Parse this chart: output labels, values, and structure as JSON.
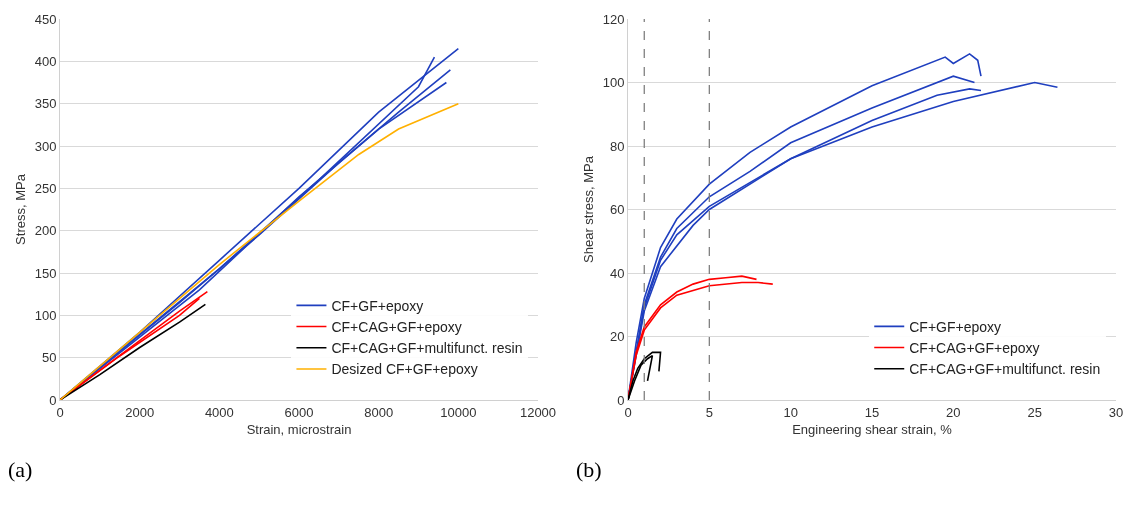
{
  "chart_data": [
    {
      "type": "line",
      "xlabel": "Strain, microstrain",
      "ylabel": "Stress, MPa",
      "xlim": [
        0,
        12000
      ],
      "xticks": [
        0,
        2000,
        4000,
        6000,
        8000,
        10000,
        12000
      ],
      "ylim": [
        0,
        450
      ],
      "yticks": [
        0,
        50,
        100,
        150,
        200,
        250,
        300,
        350,
        400,
        450
      ],
      "grid": "y",
      "legend": "bottom right",
      "annotations": [
        "(a)"
      ],
      "series": [
        {
          "name": "CF+GF+epoxy",
          "color": "#1f3fbf",
          "x": [
            0,
            2000,
            4000,
            6000,
            8000,
            10000
          ],
          "values": [
            0,
            80,
            165,
            250,
            340,
            415
          ]
        },
        {
          "color": "#1f3fbf",
          "x": [
            0,
            3000,
            5000,
            7000,
            8500,
            9800
          ],
          "values": [
            0,
            115,
            195,
            280,
            340,
            390
          ]
        },
        {
          "color": "#1f3fbf",
          "x": [
            0,
            3500,
            6000,
            8000,
            9700
          ],
          "values": [
            0,
            130,
            240,
            320,
            375
          ]
        },
        {
          "color": "#1f3fbf",
          "x": [
            0,
            4000,
            6500,
            9000,
            9400
          ],
          "values": [
            0,
            155,
            260,
            370,
            405
          ]
        },
        {
          "name": "CF+CAG+GF+epoxy",
          "color": "#ff0000",
          "x": [
            0,
            1000,
            2000,
            3000,
            3700
          ],
          "values": [
            0,
            35,
            70,
            105,
            128
          ]
        },
        {
          "color": "#ff0000",
          "x": [
            0,
            1500,
            3000,
            3500
          ],
          "values": [
            0,
            52,
            100,
            120
          ]
        },
        {
          "name": "CF+CAG+GF+multifunct. resin",
          "color": "#000000",
          "x": [
            0,
            1000,
            2000,
            3000,
            3650
          ],
          "values": [
            0,
            30,
            62,
            92,
            113
          ]
        },
        {
          "name": "Desized CF+GF+epoxy",
          "color": "#ffb000",
          "x": [
            0,
            2000,
            4000,
            6000,
            7500,
            8500,
            10000
          ],
          "values": [
            0,
            80,
            160,
            235,
            290,
            320,
            350
          ]
        }
      ]
    },
    {
      "type": "line",
      "xlabel": "Engineering shear strain, %",
      "ylabel": "Shear stress, MPa",
      "xlim": [
        0,
        30
      ],
      "xticks": [
        0,
        5,
        10,
        15,
        20,
        25,
        30
      ],
      "ylim": [
        0,
        120
      ],
      "yticks": [
        0,
        20,
        40,
        60,
        80,
        100,
        120
      ],
      "grid": "y",
      "legend": "bottom right",
      "annotations": [
        "(b)"
      ],
      "ref_lines": [
        {
          "axis": "x",
          "value": 1,
          "color": "#808080",
          "line_style": "dashed"
        },
        {
          "axis": "x",
          "value": 5,
          "color": "#808080",
          "line_style": "dashed"
        }
      ],
      "series": [
        {
          "name": "CF+GF+epoxy",
          "color": "#1f3fbf",
          "x": [
            0,
            0.5,
            1,
            2,
            3,
            5,
            7.5,
            10,
            15,
            19.5,
            20,
            21,
            21.5,
            21.7
          ],
          "values": [
            0,
            18,
            32,
            48,
            57,
            68,
            78,
            86,
            99,
            108,
            106,
            109,
            107,
            102
          ]
        },
        {
          "color": "#1f3fbf",
          "x": [
            0,
            1,
            2,
            3,
            5,
            7.5,
            10,
            15,
            20,
            21.3
          ],
          "values": [
            0,
            30,
            45,
            54,
            64,
            72,
            81,
            92,
            102,
            100
          ]
        },
        {
          "color": "#1f3fbf",
          "x": [
            0,
            1,
            2,
            3,
            5,
            10,
            15,
            20,
            25,
            26.4
          ],
          "values": [
            0,
            29,
            44,
            52,
            61,
            76,
            86,
            94,
            100,
            98.5
          ]
        },
        {
          "color": "#1f3fbf",
          "x": [
            0,
            1,
            2,
            4,
            5,
            10,
            15,
            19,
            21,
            21.7
          ],
          "values": [
            0,
            28,
            42,
            55,
            60,
            76,
            88,
            96,
            98,
            97.5
          ]
        },
        {
          "name": "CF+CAG+GF+epoxy",
          "color": "#ff0000",
          "x": [
            0,
            0.5,
            1,
            2,
            3,
            4,
            5,
            6,
            7,
            7.9
          ],
          "values": [
            0,
            15,
            23,
            30,
            34,
            36.5,
            38,
            38.5,
            39,
            38
          ]
        },
        {
          "color": "#ff0000",
          "x": [
            0,
            0.5,
            1,
            2,
            3,
            5,
            7,
            8,
            8.9
          ],
          "values": [
            0,
            14,
            22,
            29,
            33,
            36,
            37,
            37,
            36.5
          ]
        },
        {
          "name": "CF+CAG+GF+multifunct. resin",
          "color": "#000000",
          "x": [
            0,
            0.3,
            0.6,
            1,
            1.5,
            2,
            1.9
          ],
          "values": [
            0,
            6,
            10,
            13,
            15,
            15,
            9
          ]
        },
        {
          "color": "#000000",
          "x": [
            0,
            0.4,
            0.8,
            1.2,
            1.5,
            1.2
          ],
          "values": [
            0,
            6,
            11,
            13,
            14,
            6
          ]
        }
      ]
    }
  ]
}
